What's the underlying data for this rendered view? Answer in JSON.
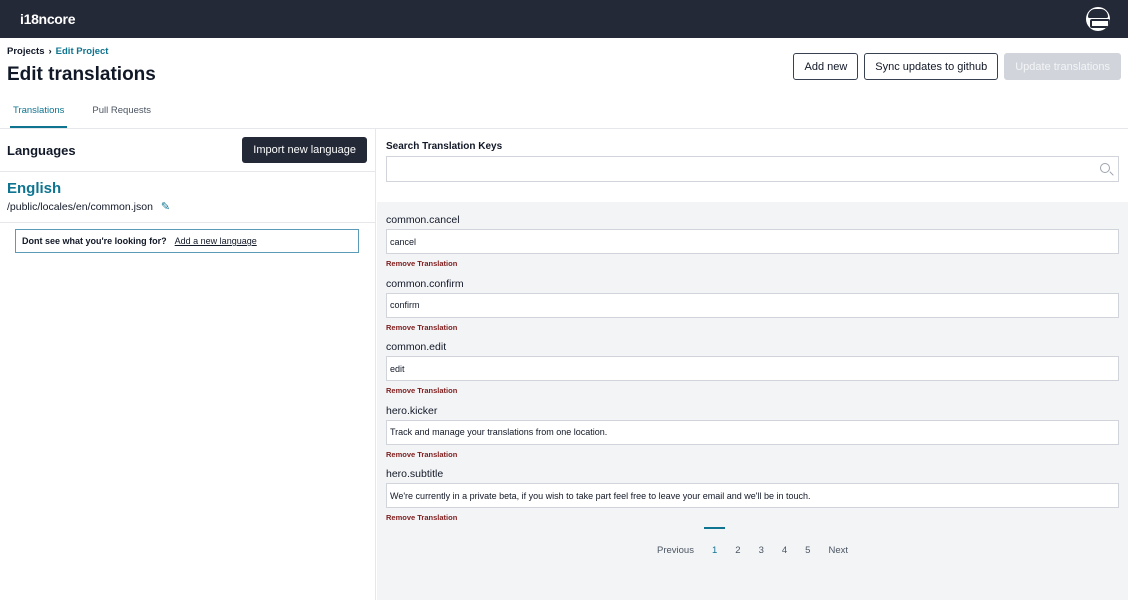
{
  "app": {
    "name": "i18ncore"
  },
  "breadcrumb": {
    "items": [
      "Projects",
      "Edit Project"
    ]
  },
  "page": {
    "title": "Edit translations"
  },
  "actions": {
    "add_new": "Add new",
    "sync": "Sync updates to github",
    "update": "Update translations"
  },
  "tabs": [
    {
      "label": "Translations",
      "active": true
    },
    {
      "label": "Pull Requests",
      "active": false
    }
  ],
  "languages": {
    "heading": "Languages",
    "import_label": "Import new language",
    "items": [
      {
        "name": "English",
        "path": "/public/locales/en/common.json"
      }
    ],
    "notice": "Dont see what you're looking for?",
    "add_link": "Add a new language"
  },
  "search": {
    "label": "Search Translation Keys",
    "value": ""
  },
  "translations": [
    {
      "key": "common.cancel",
      "value": "cancel"
    },
    {
      "key": "common.confirm",
      "value": "confirm"
    },
    {
      "key": "common.edit",
      "value": "edit"
    },
    {
      "key": "hero.kicker",
      "value": "Track and manage your translations from one location."
    },
    {
      "key": "hero.subtitle",
      "value": "We're currently in a private beta, if you wish to take part feel free to leave your email and we'll be in touch."
    }
  ],
  "remove_label": "Remove Translation",
  "pagination": {
    "previous": "Previous",
    "pages": [
      "1",
      "2",
      "3",
      "4",
      "5"
    ],
    "current": "1",
    "next": "Next"
  },
  "colors": {
    "topbar": "#232937",
    "accent": "#0e7490",
    "danger": "#7f1d1d"
  }
}
